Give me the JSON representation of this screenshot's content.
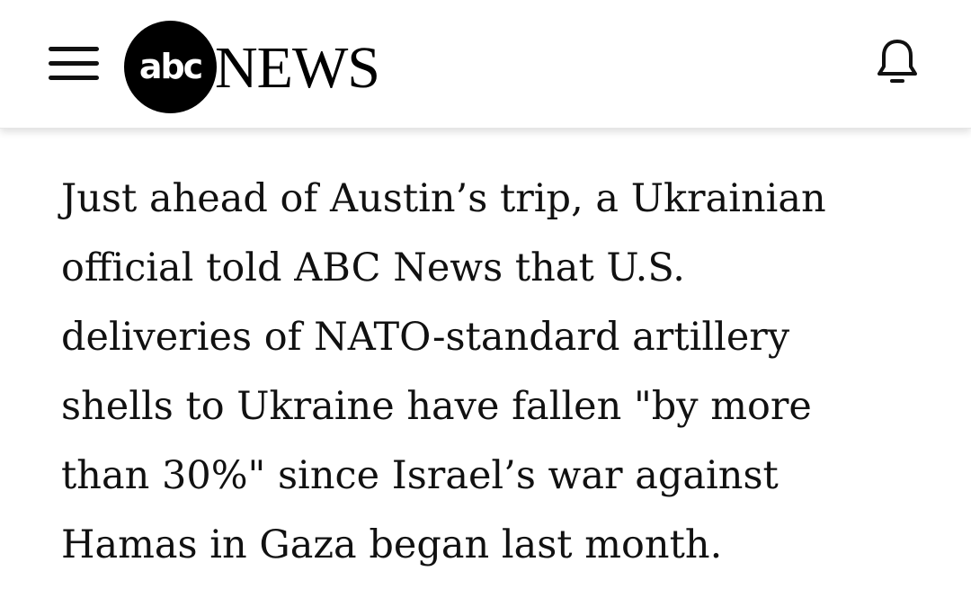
{
  "header": {
    "menu_icon": "hamburger-menu-icon",
    "logo": {
      "circle_text": "abc",
      "wordmark": "NEWS"
    },
    "notification_icon": "bell-icon"
  },
  "article": {
    "lines": [
      "Just ahead of Austin’s trip, a Ukrainian",
      "official told ABC News that U.S.",
      "deliveries of NATO-standard artillery",
      "shells to Ukraine have fallen \"by more",
      "than 30%\" since Israel’s war against",
      "Hamas in Gaza began last month."
    ]
  }
}
